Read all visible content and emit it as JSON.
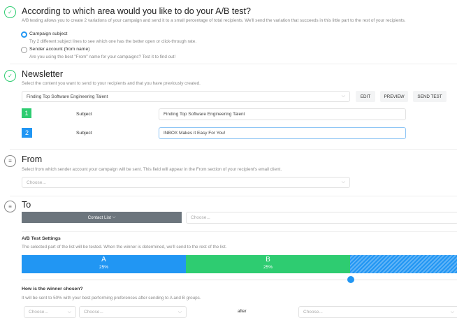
{
  "ab_area": {
    "title": "According to which area would you like to do your A/B test?",
    "description": "A/B testing allows you to create 2 variations of your campaign and send it to a small percentage of total recipients. We'll send the variation that succeeds in this little part to the rest of your recipients.",
    "options": [
      {
        "label": "Campaign subject",
        "description": "Try 2 different subject lines to see which one has the better open or click-through rate.",
        "selected": true
      },
      {
        "label": "Sender account (from name)",
        "description": "Are you using the best \"From\" name for your campaigns? Test it to find out!",
        "selected": false
      }
    ]
  },
  "newsletter": {
    "title": "Newsletter",
    "description": "Select the content you want to send to your recipients and that you have previously created.",
    "selected": "Finding Top Software Engineering Talent",
    "edit": "EDIT",
    "preview": "PREVIEW",
    "send_test": "SEND TEST",
    "variants": [
      {
        "num": "1",
        "label": "Subject",
        "value": "Finding Top Software Engineering Talent"
      },
      {
        "num": "2",
        "label": "Subject",
        "value": "INBOX Makes it Easy For You!"
      }
    ]
  },
  "from": {
    "title": "From",
    "description": "Select from which sender account your campaign will be sent. This field will appear in the From section of your recipient's email client.",
    "placeholder": "Choose..."
  },
  "to": {
    "title": "To",
    "contact_list": "Contact List",
    "placeholder": "Choose..."
  },
  "ab_settings": {
    "title": "A/B Test Settings",
    "description": "The selected part of the list will be tested. When the winner is determined, we'll send to the rest of the list.",
    "a_label": "A",
    "a_pct": "25%",
    "b_label": "B",
    "b_pct": "25%",
    "colors": {
      "a": "#2196f3",
      "b": "#2ecc71"
    }
  },
  "winner": {
    "title": "How is the winner chosen?",
    "description": "It will be sent to 50% with your best performing preferences after sending to A and B groups.",
    "select1": "Choose...",
    "select2": "Choose...",
    "after": "after",
    "select3": "Choose..."
  }
}
